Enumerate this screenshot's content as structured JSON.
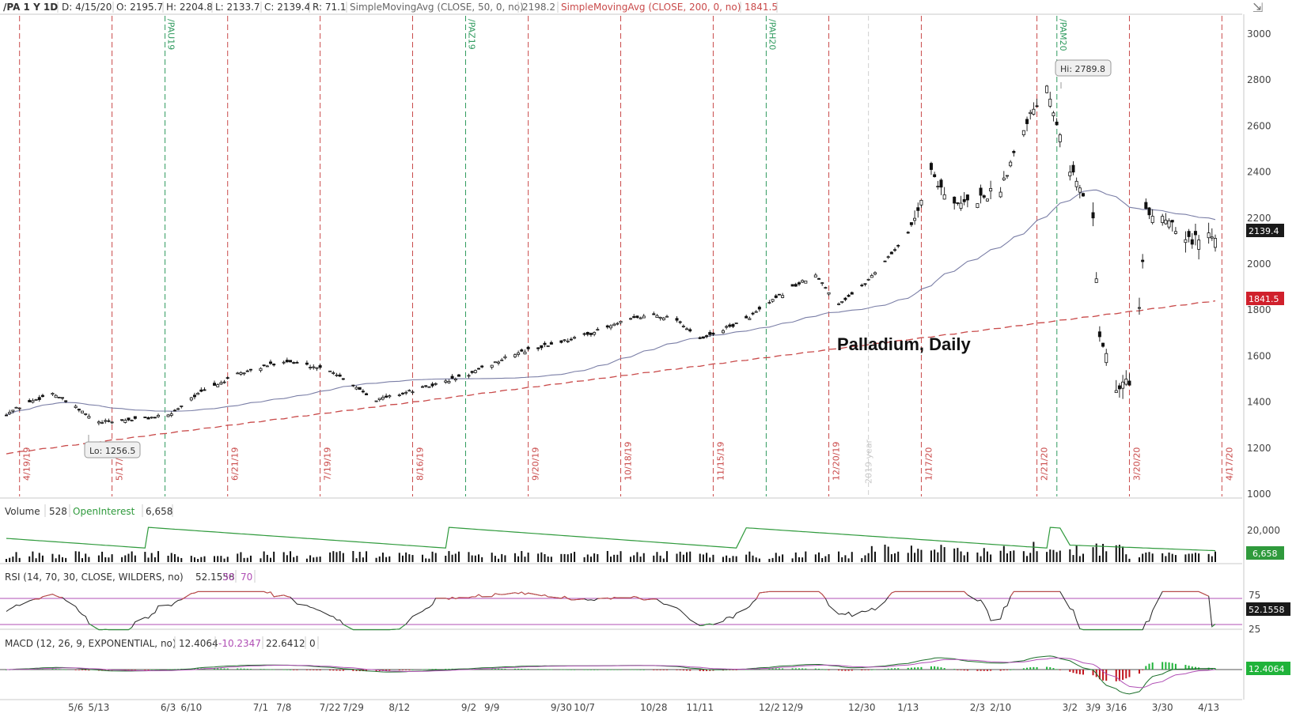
{
  "header": {
    "symbol": "/PA 1 Y 1D",
    "date": "D: 4/15/20",
    "open": "O: 2195.7",
    "high": "H: 2204.8",
    "low": "L: 2133.7",
    "close": "C: 2139.4",
    "range": "R: 71.1",
    "sma50_label": "SimpleMovingAvg (CLOSE, 50, 0, no)",
    "sma50_value": "2198.2",
    "sma200_label": "SimpleMovingAvg (CLOSE, 200, 0, no)",
    "sma200_value": "1841.5"
  },
  "colors": {
    "sma50": "#7a7ea6",
    "sma200": "#c94a4a",
    "price_badge": "#1a1a1a",
    "sma200_badge": "#d0202c",
    "vertical_red": "#c94a4a",
    "vertical_green": "#2f9a5e",
    "oi": "#2f9a3c",
    "rsi_band": "#b04fb5",
    "macd_pos": "#20b33a",
    "macd_neg": "#c0141d"
  },
  "annotation": "Palladium, Daily",
  "hi_label": "Hi: 2789.8",
  "lo_label": "Lo: 1256.5",
  "price_badge": "2139.4",
  "sma200_badge": "1841.5",
  "year_label": "2019 year",
  "expiry_labels": [
    "/PAU19",
    "/PAZ19",
    "/PAH20",
    "/PAM20"
  ],
  "week_labels": [
    "4/19/19",
    "5/17/19",
    "6/21/19",
    "7/19/19",
    "8/16/19",
    "9/20/19",
    "10/18/19",
    "11/15/19",
    "12/20/19",
    "1/17/20",
    "2/21/20",
    "3/20/20",
    "4/17/20"
  ],
  "y_ticks": [
    "3000",
    "2800",
    "2600",
    "2400",
    "2200",
    "2000",
    "1800",
    "1600",
    "1400",
    "1200",
    "1000"
  ],
  "x_ticks": [
    "5/6",
    "5/13",
    "6/3",
    "6/10",
    "7/1",
    "7/8",
    "7/22",
    "7/29",
    "8/12",
    "9/2",
    "9/9",
    "9/30",
    "10/7",
    "10/28",
    "11/11",
    "12/2",
    "12/9",
    "12/30",
    "1/13",
    "2/3",
    "2/10",
    "3/2",
    "3/9",
    "3/16",
    "3/30",
    "4/13"
  ],
  "volume_panel": {
    "label": "Volume",
    "volume": "528",
    "oi_label": "OpenInterest",
    "oi_value": "6,658",
    "tick": "20,000",
    "badge": "6,658"
  },
  "rsi_panel": {
    "label": "RSI (14, 70, 30, CLOSE, WILDERS, no)",
    "value": "52.1558",
    "low": "30",
    "high": "70",
    "tick_75": "75",
    "tick_25": "25",
    "badge": "52.1558"
  },
  "macd_panel": {
    "label": "MACD (12, 26, 9, EXPONENTIAL, no)",
    "value": "12.4064",
    "avg": "-10.2347",
    "diff": "22.6412",
    "zero": "0",
    "badge": "12.4064"
  },
  "chart_data": {
    "type": "candlestick",
    "title": "Palladium, Daily",
    "ylim": [
      1000,
      3000
    ],
    "anchors": [
      {
        "date": "4/15/19",
        "close": 1350
      },
      {
        "date": "4/22/19",
        "close": 1400
      },
      {
        "date": "4/29/19",
        "close": 1440
      },
      {
        "date": "5/6/19",
        "close": 1375
      },
      {
        "date": "5/13/19",
        "close": 1310
      },
      {
        "date": "5/27/19",
        "close": 1330
      },
      {
        "date": "6/3/19",
        "close": 1340
      },
      {
        "date": "6/10/19",
        "close": 1420
      },
      {
        "date": "6/24/19",
        "close": 1520
      },
      {
        "date": "7/8/19",
        "close": 1580
      },
      {
        "date": "7/22/19",
        "close": 1540
      },
      {
        "date": "8/5/19",
        "close": 1410
      },
      {
        "date": "8/19/19",
        "close": 1460
      },
      {
        "date": "9/2/19",
        "close": 1520
      },
      {
        "date": "9/16/19",
        "close": 1610
      },
      {
        "date": "10/7/19",
        "close": 1690
      },
      {
        "date": "10/21/19",
        "close": 1760
      },
      {
        "date": "10/28/19",
        "close": 1780
      },
      {
        "date": "11/4/19",
        "close": 1760
      },
      {
        "date": "11/11/19",
        "close": 1670
      },
      {
        "date": "11/25/19",
        "close": 1760
      },
      {
        "date": "12/9/19",
        "close": 1900
      },
      {
        "date": "12/16/19",
        "close": 1950
      },
      {
        "date": "12/23/19",
        "close": 1830
      },
      {
        "date": "12/30/19",
        "close": 1900
      },
      {
        "date": "1/13/20",
        "close": 2130
      },
      {
        "date": "1/20/20",
        "close": 2400
      },
      {
        "date": "1/27/20",
        "close": 2250
      },
      {
        "date": "2/3/20",
        "close": 2280
      },
      {
        "date": "2/10/20",
        "close": 2330
      },
      {
        "date": "2/17/20",
        "close": 2600
      },
      {
        "date": "2/24/20",
        "close": 2780
      },
      {
        "date": "3/2/20",
        "close": 2420
      },
      {
        "date": "3/9/20",
        "close": 2200
      },
      {
        "date": "3/11/20",
        "close": 1700
      },
      {
        "date": "3/16/20",
        "close": 1450
      },
      {
        "date": "3/20/20",
        "close": 1500
      },
      {
        "date": "3/23/20",
        "close": 1800
      },
      {
        "date": "3/25/20",
        "close": 2220
      },
      {
        "date": "4/1/20",
        "close": 2200
      },
      {
        "date": "4/8/20",
        "close": 2100
      },
      {
        "date": "4/15/20",
        "close": 2139.4
      }
    ],
    "hi": 2789.8,
    "lo": 1256.5,
    "last_close": 2139.4
  }
}
